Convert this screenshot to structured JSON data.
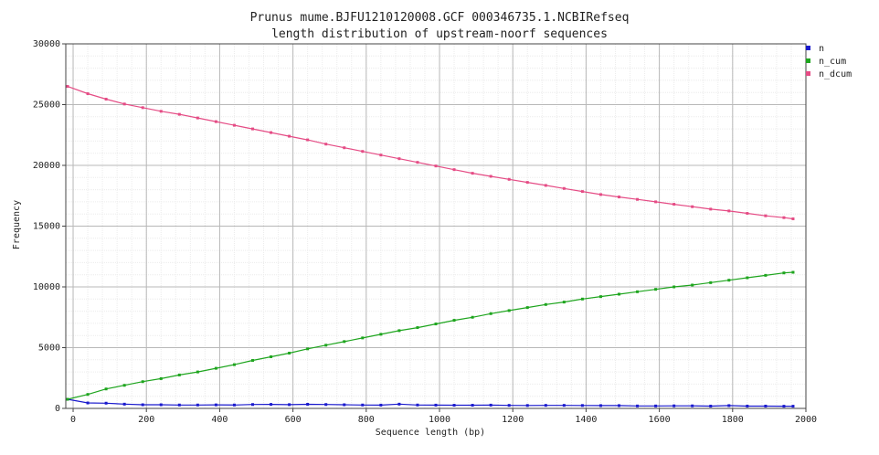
{
  "chart_data": {
    "type": "line",
    "title_line1": "Prunus mume.BJFU1210120008.GCF 000346735.1.NCBIRefseq",
    "title_line2": "length distribution of upstream-noorf sequences",
    "xlabel": "Sequence length (bp)",
    "ylabel": "Frequency",
    "xlim": [
      -20,
      2000
    ],
    "ylim": [
      0,
      30000
    ],
    "xticks": [
      0,
      200,
      400,
      600,
      800,
      1000,
      1200,
      1400,
      1600,
      1800,
      2000
    ],
    "yticks": [
      0,
      5000,
      10000,
      15000,
      20000,
      25000,
      30000
    ],
    "grid": true,
    "legend_position": "top-right",
    "x": [
      -15,
      40,
      90,
      140,
      190,
      240,
      290,
      340,
      390,
      440,
      490,
      540,
      590,
      640,
      690,
      740,
      790,
      840,
      890,
      940,
      990,
      1040,
      1090,
      1140,
      1190,
      1240,
      1290,
      1340,
      1390,
      1440,
      1490,
      1540,
      1590,
      1640,
      1690,
      1740,
      1790,
      1840,
      1890,
      1940,
      1965
    ],
    "series": [
      {
        "name": "n",
        "color": "#1a1acd",
        "values": [
          750,
          450,
          430,
          350,
          300,
          300,
          280,
          280,
          290,
          280,
          320,
          330,
          310,
          340,
          320,
          300,
          280,
          270,
          350,
          280,
          270,
          260,
          260,
          270,
          250,
          240,
          250,
          250,
          240,
          230,
          230,
          200,
          200,
          210,
          210,
          190,
          230,
          190,
          190,
          180,
          180
        ]
      },
      {
        "name": "n_cum",
        "color": "#1ea51e",
        "values": [
          750,
          1150,
          1600,
          1900,
          2200,
          2450,
          2750,
          3000,
          3300,
          3600,
          3950,
          4250,
          4550,
          4900,
          5200,
          5500,
          5800,
          6100,
          6400,
          6650,
          6950,
          7250,
          7500,
          7800,
          8050,
          8300,
          8550,
          8750,
          9000,
          9200,
          9400,
          9600,
          9800,
          10000,
          10150,
          10350,
          10550,
          10750,
          10950,
          11150,
          11200
        ]
      },
      {
        "name": "n_dcum",
        "color": "#e54c85",
        "values": [
          26500,
          25900,
          25450,
          25050,
          24750,
          24450,
          24200,
          23900,
          23600,
          23300,
          23000,
          22700,
          22400,
          22100,
          21750,
          21450,
          21150,
          20850,
          20550,
          20250,
          19950,
          19650,
          19350,
          19100,
          18850,
          18600,
          18350,
          18100,
          17850,
          17600,
          17400,
          17200,
          17000,
          16800,
          16600,
          16400,
          16250,
          16050,
          15850,
          15700,
          15600
        ]
      }
    ]
  }
}
